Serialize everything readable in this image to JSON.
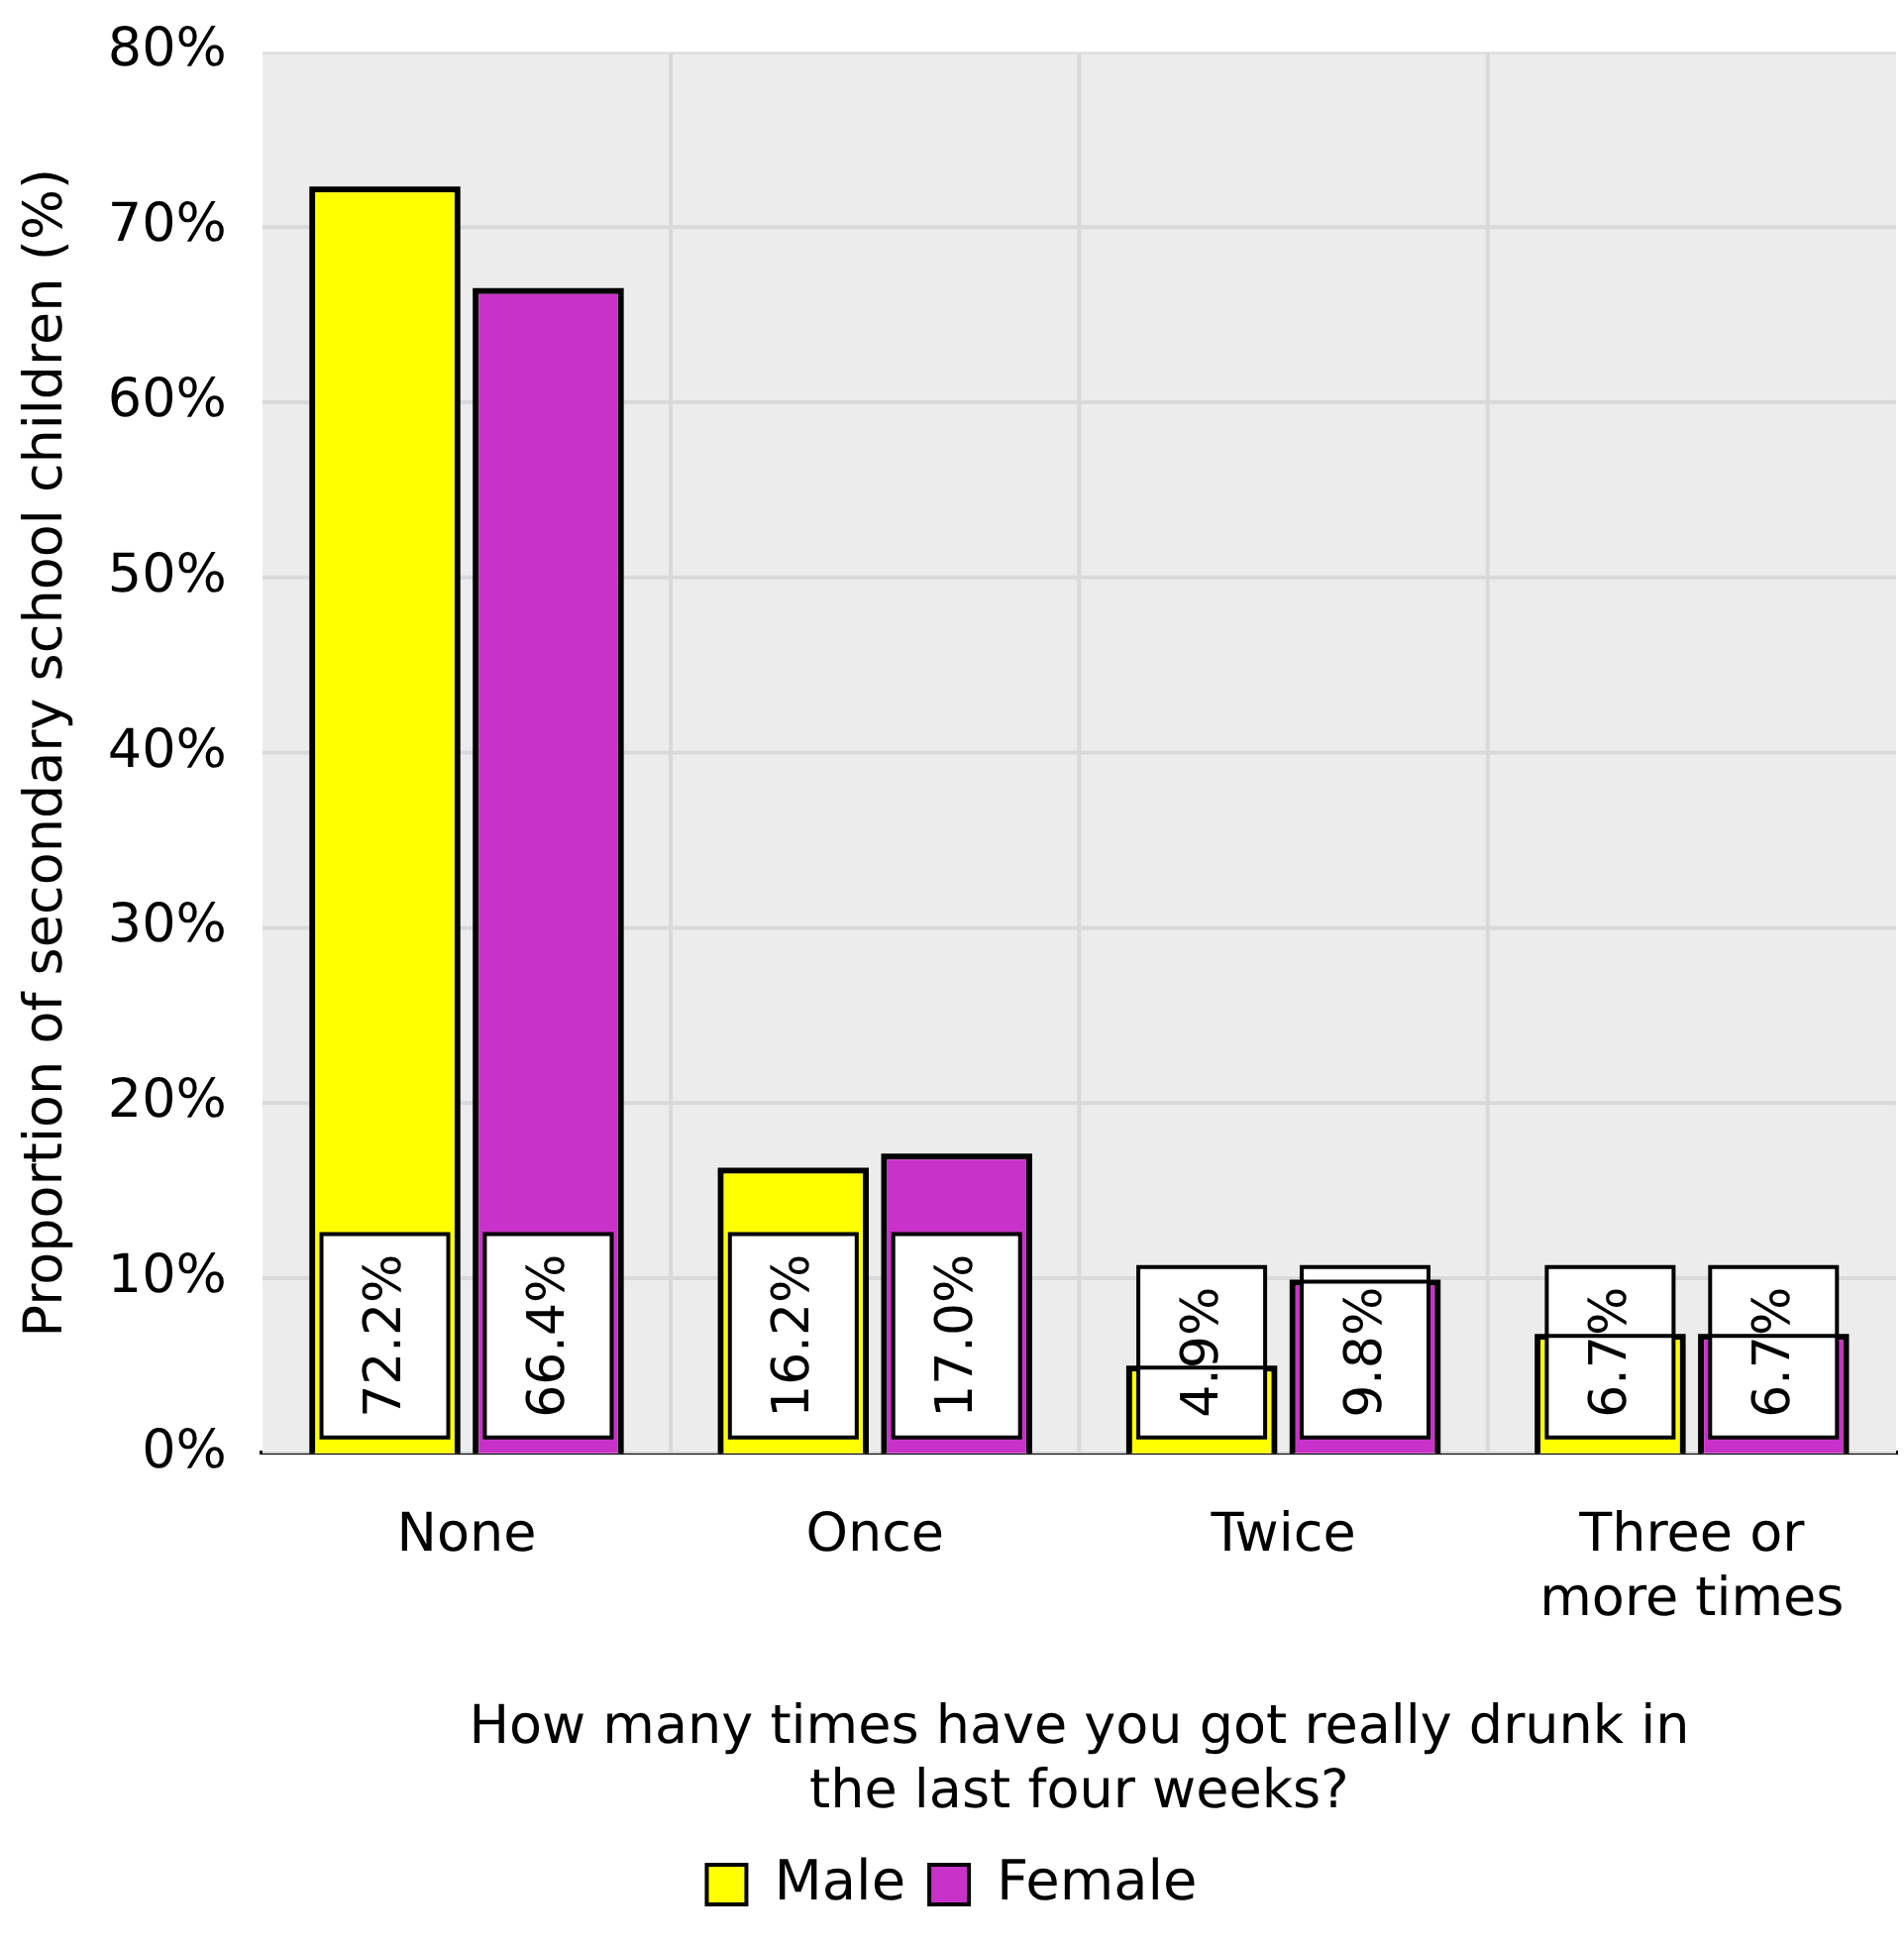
{
  "chart_data": {
    "type": "bar",
    "xlabel": "How many times have you got really drunk in the last four weeks?",
    "ylabel": "Proportion of secondary school children (%)",
    "categories": [
      "None",
      "Once",
      "Twice",
      "Three or more times"
    ],
    "series": [
      {
        "name": "Male",
        "color": "#ffff00",
        "values": [
          72.2,
          16.2,
          4.9,
          6.7
        ],
        "value_labels": [
          "72.2%",
          "16.2%",
          "4.9%",
          "6.7%"
        ]
      },
      {
        "name": "Female",
        "color": "#c832c8",
        "values": [
          66.4,
          17.0,
          9.8,
          6.7
        ],
        "value_labels": [
          "66.4%",
          "17.0%",
          "9.8%",
          "6.7%"
        ]
      }
    ],
    "ylim": [
      0,
      80
    ],
    "yticks": [
      {
        "value": 0,
        "label": "0%"
      },
      {
        "value": 10,
        "label": "10%"
      },
      {
        "value": 20,
        "label": "20%"
      },
      {
        "value": 30,
        "label": "30%"
      },
      {
        "value": 40,
        "label": "40%"
      },
      {
        "value": 50,
        "label": "50%"
      },
      {
        "value": 60,
        "label": "60%"
      },
      {
        "value": 70,
        "label": "70%"
      },
      {
        "value": 80,
        "label": "80%"
      }
    ],
    "grid": true,
    "legend": "bottom"
  }
}
